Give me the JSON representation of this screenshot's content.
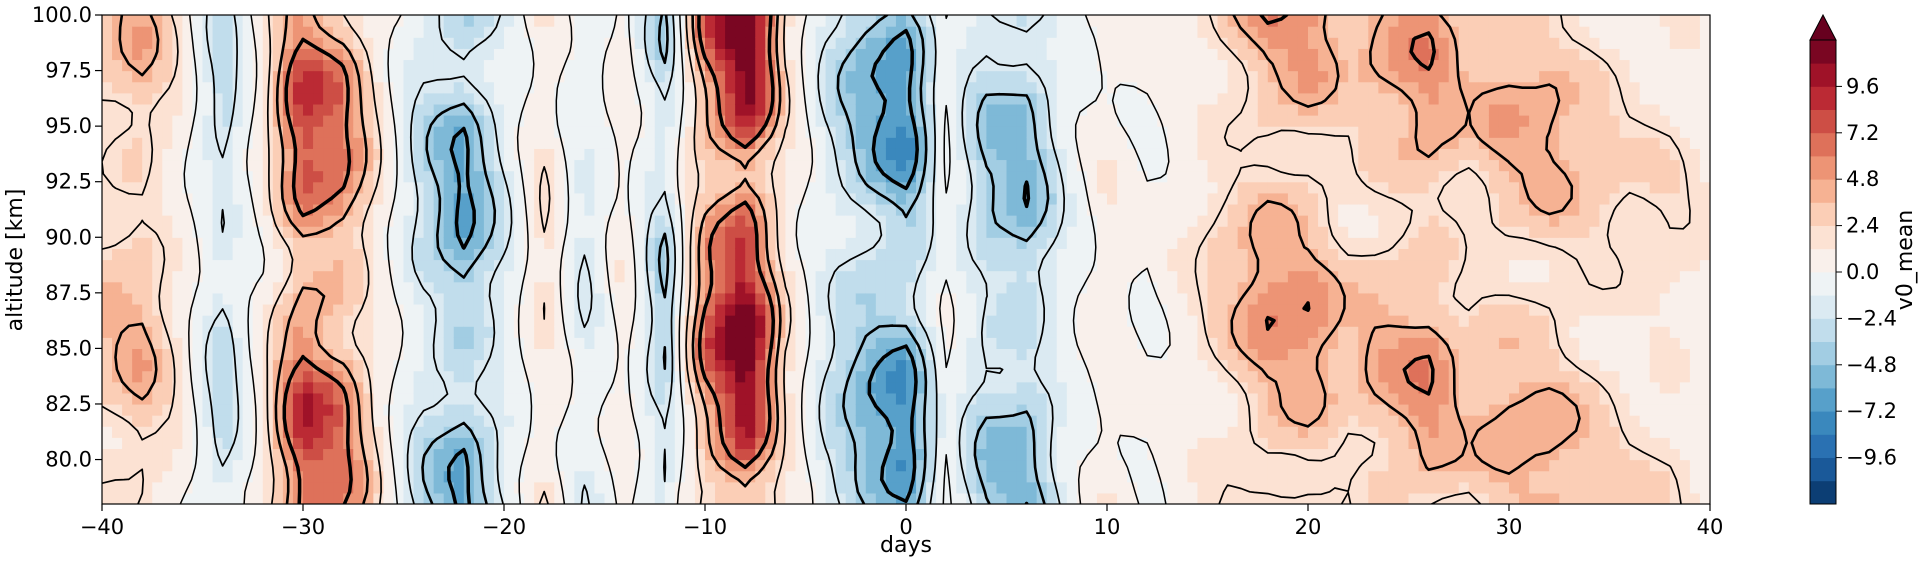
{
  "chart_data": {
    "type": "heatmap",
    "subtype": "filled-contour with line-contour overlay",
    "xlabel": "days",
    "ylabel": "altitude [km]",
    "xlim": [
      -40,
      40
    ],
    "ylim": [
      78,
      100
    ],
    "xticks": [
      -40,
      -30,
      -20,
      -10,
      0,
      10,
      20,
      30,
      40
    ],
    "xtick_labels": [
      "−40",
      "−30",
      "−20",
      "−10",
      "0",
      "10",
      "20",
      "30",
      "40"
    ],
    "yticks": [
      80.0,
      82.5,
      85.0,
      87.5,
      90.0,
      92.5,
      95.0,
      97.5,
      100.0
    ],
    "ytick_labels": [
      "80.0",
      "82.5",
      "85.0",
      "87.5",
      "90.0",
      "92.5",
      "95.0",
      "97.5",
      "100.0"
    ],
    "colorbar": {
      "label": "v0_mean",
      "colormap": "RdBu_r",
      "extend": "max",
      "range": [
        -12,
        12
      ],
      "ticks": [
        -9.6,
        -7.2,
        -4.8,
        -2.4,
        0.0,
        2.4,
        4.8,
        7.2,
        9.6
      ],
      "tick_labels": [
        "−9.6",
        "−7.2",
        "−4.8",
        "−2.4",
        "0.0",
        "2.4",
        "4.8",
        "7.2",
        "9.6"
      ],
      "extend_color": "#67001f"
    },
    "days": [
      -40,
      -38,
      -36,
      -34,
      -32,
      -30,
      -28,
      -26,
      -24,
      -22,
      -20,
      -18,
      -16,
      -14,
      -12,
      -10,
      -8,
      -6,
      -4,
      -2,
      0,
      2,
      4,
      6,
      8,
      10,
      12,
      14,
      16,
      18,
      20,
      22,
      24,
      26,
      28,
      30,
      32,
      34,
      36,
      38,
      40
    ],
    "v0_mean_by_day": [
      3,
      4,
      1,
      -3,
      1,
      8,
      6,
      1,
      -3,
      -6,
      -2,
      2,
      -2,
      1,
      -4,
      6,
      12,
      2,
      -2,
      -5,
      -7,
      0,
      -4,
      -5,
      -1,
      1,
      0,
      1,
      3,
      5,
      5,
      3,
      4,
      5,
      3,
      4,
      4,
      3,
      2,
      2,
      1
    ],
    "contour_line_levels": [
      -6,
      -4,
      -2,
      0,
      2,
      4,
      6
    ]
  },
  "colors": {
    "extreme_positive": "#67001f",
    "extreme_negative": "#053061",
    "neutral": "#f7f7f7",
    "contour_lines": "#000000"
  }
}
